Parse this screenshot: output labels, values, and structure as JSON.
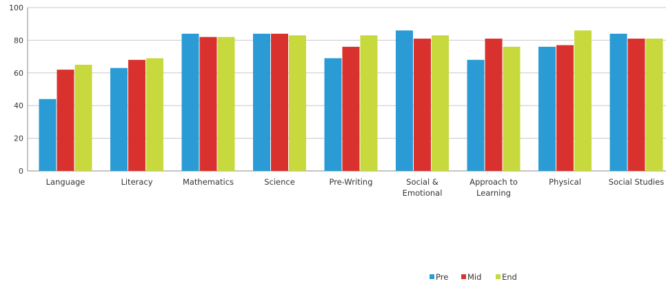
{
  "chart_data": {
    "type": "bar",
    "title": "",
    "xlabel": "",
    "ylabel": "",
    "ylim": [
      0,
      100
    ],
    "yticks": [
      0,
      20,
      40,
      60,
      80,
      100
    ],
    "grid": "horizontal",
    "legend_position": "bottom-right",
    "categories": [
      [
        "Language"
      ],
      [
        "Literacy"
      ],
      [
        "Mathematics"
      ],
      [
        "Science"
      ],
      [
        "Pre-Writing"
      ],
      [
        "Social &",
        "Emotional"
      ],
      [
        "Approach to",
        "Learning"
      ],
      [
        "Physical"
      ],
      [
        "Social Studies"
      ]
    ],
    "series": [
      {
        "name": "Pre",
        "color": "#2a9bd4",
        "values": [
          44,
          63,
          84,
          84,
          69,
          86,
          68,
          76,
          84
        ]
      },
      {
        "name": "Mid",
        "color": "#d9322e",
        "values": [
          62,
          68,
          82,
          84,
          76,
          81,
          81,
          77,
          81
        ]
      },
      {
        "name": "End",
        "color": "#c7d93d",
        "values": [
          65,
          69,
          82,
          83,
          83,
          83,
          76,
          86,
          81
        ]
      }
    ]
  }
}
